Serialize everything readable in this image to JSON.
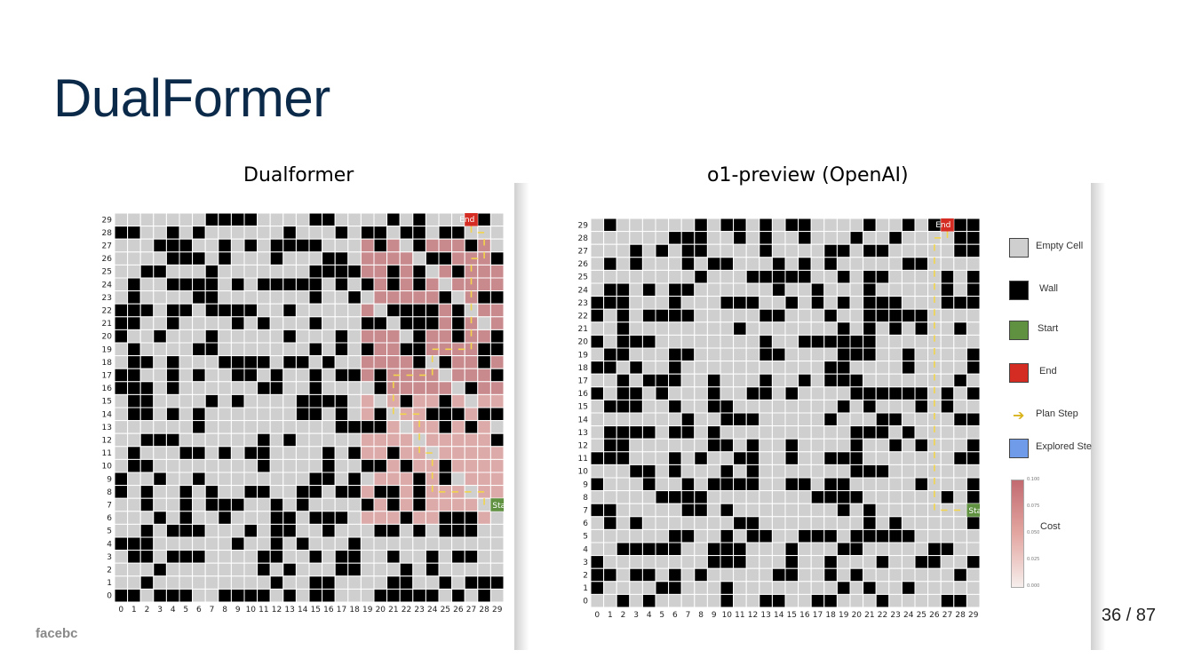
{
  "slide": {
    "title": "DualFormer",
    "page_number": "36 / 87",
    "logo_text": "facebc"
  },
  "panels": {
    "left_title": "Dualformer",
    "right_title": "o1-preview (OpenAI)"
  },
  "maze": {
    "size": 30,
    "start_label": "Start",
    "end_label": "End",
    "colors": {
      "empty": "#cfcfcf",
      "wall": "#000000",
      "start": "#5f9141",
      "end": "#d42c22",
      "path_arrow": "#f2d54a",
      "explored": "#6f9be8"
    },
    "x_ticks": [
      "0",
      "1",
      "2",
      "3",
      "4",
      "5",
      "6",
      "7",
      "8",
      "9",
      "10",
      "11",
      "12",
      "13",
      "14",
      "15",
      "16",
      "17",
      "18",
      "19",
      "20",
      "21",
      "22",
      "23",
      "24",
      "25",
      "26",
      "27",
      "28",
      "29"
    ],
    "y_ticks": [
      "0",
      "1",
      "2",
      "3",
      "4",
      "5",
      "6",
      "7",
      "8",
      "9",
      "10",
      "11",
      "12",
      "13",
      "14",
      "15",
      "16",
      "17",
      "18",
      "19",
      "20",
      "21",
      "22",
      "23",
      "24",
      "25",
      "26",
      "27",
      "28",
      "29"
    ]
  },
  "legend": {
    "items": [
      {
        "label": "Empty Cell",
        "color": "#cfcfcf",
        "icon": "square"
      },
      {
        "label": "Wall",
        "color": "#000000",
        "icon": "square"
      },
      {
        "label": "Start",
        "color": "#5f9141",
        "icon": "square"
      },
      {
        "label": "End",
        "color": "#d42c22",
        "icon": "square"
      },
      {
        "label": "Plan Step",
        "color": "#f2d54a",
        "icon": "arrow-right-icon"
      },
      {
        "label": "Explored Ste",
        "color": "#6f9be8",
        "icon": "square"
      }
    ],
    "colorbar_label": "Cost",
    "colorbar_ticks": [
      "0.100",
      "0.075",
      "0.050",
      "0.025",
      "0.000"
    ]
  }
}
